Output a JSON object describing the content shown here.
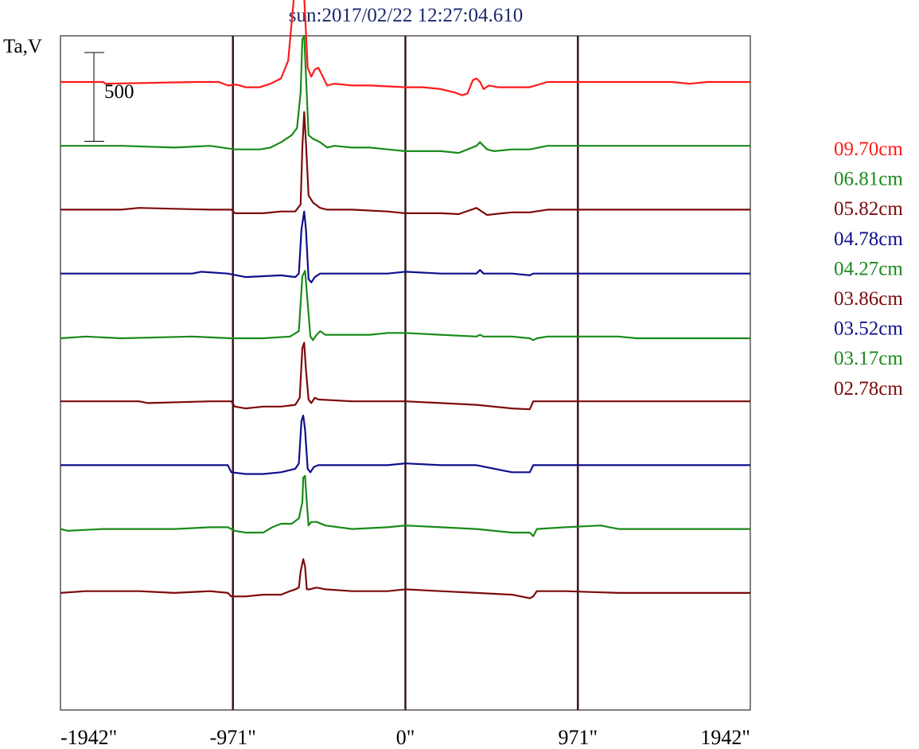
{
  "chart_data": {
    "type": "line",
    "title": "sun:2017/02/22 12:27:04.610",
    "ylabel": "Ta,V",
    "xlabel": "",
    "x_tick_labels": [
      "-1942\"",
      "-971\"",
      "0\"",
      "971\"",
      "1942\""
    ],
    "x_ticks": [
      -1942,
      -971,
      0,
      971,
      1942
    ],
    "xlim": [
      -1942,
      1942
    ],
    "grid_lines_x": [
      -971,
      0,
      971
    ],
    "scale_bar": {
      "label": "500",
      "value": 500
    },
    "y_range": [
      -300,
      3500
    ],
    "colors": {
      "red": "#ff1a1a",
      "green": "#1a8a1a",
      "maroon": "#7d0a0a",
      "navy": "#0f0f8c",
      "vline": "#3a1818"
    },
    "legend": [
      {
        "label": "09.70cm",
        "color": "#ff1a1a"
      },
      {
        "label": "06.81cm",
        "color": "#1a8a1a"
      },
      {
        "label": "05.82cm",
        "color": "#7d0a0a"
      },
      {
        "label": "04.78cm",
        "color": "#0f0f8c"
      },
      {
        "label": "04.27cm",
        "color": "#1a8a1a"
      },
      {
        "label": "03.86cm",
        "color": "#7d0a0a"
      },
      {
        "label": "03.52cm",
        "color": "#0f0f8c"
      },
      {
        "label": "03.17cm",
        "color": "#1a8a1a"
      },
      {
        "label": "02.78cm",
        "color": "#7d0a0a"
      }
    ],
    "series": [
      {
        "name": "09.70cm",
        "color": "#ff1a1a",
        "offset": 3240,
        "points": [
          [
            -1942,
            0
          ],
          [
            -1700,
            0
          ],
          [
            -1690,
            -10
          ],
          [
            -1180,
            0
          ],
          [
            -1050,
            0
          ],
          [
            -1000,
            -20
          ],
          [
            -950,
            -15
          ],
          [
            -900,
            -30
          ],
          [
            -820,
            -30
          ],
          [
            -760,
            -10
          ],
          [
            -700,
            20
          ],
          [
            -660,
            120
          ],
          [
            -630,
            450
          ],
          [
            -610,
            800
          ],
          [
            -600,
            870
          ],
          [
            -590,
            820
          ],
          [
            -570,
            480
          ],
          [
            -550,
            80
          ],
          [
            -530,
            30
          ],
          [
            -510,
            70
          ],
          [
            -490,
            80
          ],
          [
            -470,
            40
          ],
          [
            -440,
            -20
          ],
          [
            -400,
            -10
          ],
          [
            -300,
            -20
          ],
          [
            -200,
            -20
          ],
          [
            -100,
            -25
          ],
          [
            0,
            -30
          ],
          [
            100,
            -30
          ],
          [
            200,
            -40
          ],
          [
            280,
            -60
          ],
          [
            320,
            -75
          ],
          [
            350,
            -65
          ],
          [
            380,
            10
          ],
          [
            400,
            20
          ],
          [
            420,
            0
          ],
          [
            440,
            -40
          ],
          [
            470,
            -20
          ],
          [
            520,
            -30
          ],
          [
            600,
            -30
          ],
          [
            700,
            -30
          ],
          [
            800,
            0
          ],
          [
            1200,
            0
          ],
          [
            1400,
            0
          ],
          [
            1500,
            0
          ],
          [
            1600,
            -10
          ],
          [
            1700,
            0
          ],
          [
            1942,
            0
          ]
        ]
      },
      {
        "name": "06.81cm",
        "color": "#1a8a1a",
        "offset": 2880,
        "points": [
          [
            -1942,
            0
          ],
          [
            -1600,
            0
          ],
          [
            -1300,
            -10
          ],
          [
            -1100,
            0
          ],
          [
            -960,
            -20
          ],
          [
            -900,
            -20
          ],
          [
            -820,
            -20
          ],
          [
            -760,
            -10
          ],
          [
            -700,
            20
          ],
          [
            -640,
            60
          ],
          [
            -610,
            100
          ],
          [
            -590,
            300
          ],
          [
            -580,
            600
          ],
          [
            -570,
            620
          ],
          [
            -560,
            400
          ],
          [
            -545,
            60
          ],
          [
            -520,
            40
          ],
          [
            -480,
            20
          ],
          [
            -440,
            -10
          ],
          [
            -400,
            0
          ],
          [
            -300,
            -10
          ],
          [
            -200,
            -10
          ],
          [
            -100,
            -20
          ],
          [
            0,
            -30
          ],
          [
            100,
            -30
          ],
          [
            200,
            -30
          ],
          [
            300,
            -40
          ],
          [
            400,
            0
          ],
          [
            420,
            20
          ],
          [
            440,
            0
          ],
          [
            460,
            -20
          ],
          [
            500,
            -30
          ],
          [
            600,
            -20
          ],
          [
            700,
            -20
          ],
          [
            800,
            0
          ],
          [
            1942,
            0
          ]
        ]
      },
      {
        "name": "05.82cm",
        "color": "#7d0a0a",
        "offset": 2520,
        "points": [
          [
            -1942,
            0
          ],
          [
            -1600,
            0
          ],
          [
            -1500,
            10
          ],
          [
            -1100,
            0
          ],
          [
            -980,
            0
          ],
          [
            -960,
            -20
          ],
          [
            -900,
            -20
          ],
          [
            -800,
            -20
          ],
          [
            -700,
            -10
          ],
          [
            -620,
            -10
          ],
          [
            -590,
            30
          ],
          [
            -580,
            350
          ],
          [
            -570,
            550
          ],
          [
            -560,
            380
          ],
          [
            -545,
            80
          ],
          [
            -520,
            40
          ],
          [
            -480,
            10
          ],
          [
            -440,
            0
          ],
          [
            -300,
            0
          ],
          [
            -100,
            -10
          ],
          [
            0,
            -20
          ],
          [
            200,
            -20
          ],
          [
            300,
            -25
          ],
          [
            400,
            10
          ],
          [
            430,
            -10
          ],
          [
            460,
            -30
          ],
          [
            500,
            -25
          ],
          [
            600,
            -15
          ],
          [
            700,
            -15
          ],
          [
            800,
            0
          ],
          [
            1942,
            0
          ]
        ]
      },
      {
        "name": "04.78cm",
        "color": "#0f0f8c",
        "offset": 2160,
        "points": [
          [
            -1942,
            0
          ],
          [
            -1200,
            0
          ],
          [
            -1150,
            10
          ],
          [
            -1000,
            0
          ],
          [
            -900,
            -20
          ],
          [
            -700,
            -10
          ],
          [
            -620,
            -20
          ],
          [
            -600,
            0
          ],
          [
            -585,
            250
          ],
          [
            -570,
            350
          ],
          [
            -560,
            250
          ],
          [
            -545,
            -30
          ],
          [
            -530,
            -50
          ],
          [
            -510,
            -20
          ],
          [
            -480,
            0
          ],
          [
            -300,
            0
          ],
          [
            -100,
            0
          ],
          [
            0,
            10
          ],
          [
            200,
            0
          ],
          [
            400,
            0
          ],
          [
            420,
            20
          ],
          [
            440,
            0
          ],
          [
            600,
            0
          ],
          [
            700,
            -10
          ],
          [
            720,
            0
          ],
          [
            1942,
            0
          ]
        ]
      },
      {
        "name": "04.27cm",
        "color": "#1a8a1a",
        "offset": 1795,
        "points": [
          [
            -1942,
            0
          ],
          [
            -1800,
            10
          ],
          [
            -1600,
            0
          ],
          [
            -1200,
            10
          ],
          [
            -980,
            0
          ],
          [
            -800,
            0
          ],
          [
            -650,
            10
          ],
          [
            -600,
            40
          ],
          [
            -580,
            350
          ],
          [
            -565,
            380
          ],
          [
            -550,
            200
          ],
          [
            -535,
            10
          ],
          [
            -520,
            -10
          ],
          [
            -500,
            20
          ],
          [
            -480,
            40
          ],
          [
            -450,
            20
          ],
          [
            -400,
            20
          ],
          [
            -200,
            20
          ],
          [
            -100,
            30
          ],
          [
            0,
            30
          ],
          [
            200,
            20
          ],
          [
            400,
            10
          ],
          [
            420,
            20
          ],
          [
            440,
            10
          ],
          [
            600,
            10
          ],
          [
            700,
            0
          ],
          [
            720,
            -10
          ],
          [
            740,
            0
          ],
          [
            800,
            10
          ],
          [
            1200,
            10
          ],
          [
            1300,
            0
          ],
          [
            1942,
            0
          ]
        ]
      },
      {
        "name": "03.86cm",
        "color": "#7d0a0a",
        "offset": 1440,
        "points": [
          [
            -1942,
            0
          ],
          [
            -1500,
            0
          ],
          [
            -1450,
            -10
          ],
          [
            -1100,
            0
          ],
          [
            -980,
            0
          ],
          [
            -960,
            -30
          ],
          [
            -900,
            -40
          ],
          [
            -800,
            -30
          ],
          [
            -700,
            -30
          ],
          [
            -620,
            -20
          ],
          [
            -595,
            20
          ],
          [
            -580,
            300
          ],
          [
            -570,
            330
          ],
          [
            -560,
            180
          ],
          [
            -545,
            10
          ],
          [
            -530,
            -10
          ],
          [
            -510,
            20
          ],
          [
            -490,
            10
          ],
          [
            -300,
            0
          ],
          [
            0,
            0
          ],
          [
            200,
            -10
          ],
          [
            400,
            -20
          ],
          [
            600,
            -40
          ],
          [
            700,
            -45
          ],
          [
            720,
            0
          ],
          [
            1942,
            0
          ]
        ]
      },
      {
        "name": "03.52cm",
        "color": "#0f0f8c",
        "offset": 1080,
        "points": [
          [
            -1942,
            0
          ],
          [
            -1000,
            0
          ],
          [
            -980,
            -40
          ],
          [
            -900,
            -50
          ],
          [
            -800,
            -50
          ],
          [
            -700,
            -40
          ],
          [
            -620,
            -20
          ],
          [
            -600,
            10
          ],
          [
            -585,
            250
          ],
          [
            -575,
            280
          ],
          [
            -565,
            200
          ],
          [
            -550,
            -20
          ],
          [
            -535,
            -40
          ],
          [
            -515,
            -10
          ],
          [
            -490,
            0
          ],
          [
            -100,
            0
          ],
          [
            0,
            10
          ],
          [
            200,
            0
          ],
          [
            400,
            0
          ],
          [
            600,
            -40
          ],
          [
            700,
            -40
          ],
          [
            720,
            0
          ],
          [
            1942,
            0
          ]
        ]
      },
      {
        "name": "03.17cm",
        "color": "#1a8a1a",
        "offset": 720,
        "points": [
          [
            -1942,
            0
          ],
          [
            -1900,
            -10
          ],
          [
            -1700,
            0
          ],
          [
            -1300,
            0
          ],
          [
            -1100,
            10
          ],
          [
            -1000,
            10
          ],
          [
            -960,
            -10
          ],
          [
            -900,
            -20
          ],
          [
            -800,
            -20
          ],
          [
            -750,
            10
          ],
          [
            -700,
            30
          ],
          [
            -640,
            30
          ],
          [
            -600,
            60
          ],
          [
            -580,
            150
          ],
          [
            -575,
            290
          ],
          [
            -565,
            300
          ],
          [
            -555,
            150
          ],
          [
            -545,
            20
          ],
          [
            -530,
            40
          ],
          [
            -500,
            40
          ],
          [
            -450,
            20
          ],
          [
            -300,
            0
          ],
          [
            -100,
            10
          ],
          [
            0,
            20
          ],
          [
            200,
            10
          ],
          [
            400,
            0
          ],
          [
            500,
            -10
          ],
          [
            600,
            -20
          ],
          [
            700,
            -20
          ],
          [
            720,
            -40
          ],
          [
            740,
            0
          ],
          [
            900,
            10
          ],
          [
            1100,
            20
          ],
          [
            1200,
            0
          ],
          [
            1942,
            0
          ]
        ]
      },
      {
        "name": "02.78cm",
        "color": "#7d0a0a",
        "offset": 360,
        "points": [
          [
            -1942,
            0
          ],
          [
            -1800,
            10
          ],
          [
            -1500,
            10
          ],
          [
            -1300,
            0
          ],
          [
            -1100,
            10
          ],
          [
            -1000,
            0
          ],
          [
            -980,
            -20
          ],
          [
            -900,
            -20
          ],
          [
            -800,
            -10
          ],
          [
            -700,
            -10
          ],
          [
            -650,
            10
          ],
          [
            -620,
            20
          ],
          [
            -600,
            30
          ],
          [
            -590,
            120
          ],
          [
            -575,
            190
          ],
          [
            -565,
            150
          ],
          [
            -555,
            20
          ],
          [
            -540,
            20
          ],
          [
            -500,
            30
          ],
          [
            -450,
            20
          ],
          [
            -300,
            10
          ],
          [
            -100,
            10
          ],
          [
            0,
            20
          ],
          [
            200,
            10
          ],
          [
            400,
            0
          ],
          [
            600,
            -10
          ],
          [
            700,
            -30
          ],
          [
            720,
            -20
          ],
          [
            740,
            10
          ],
          [
            900,
            10
          ],
          [
            1200,
            0
          ],
          [
            1942,
            0
          ]
        ]
      }
    ]
  }
}
